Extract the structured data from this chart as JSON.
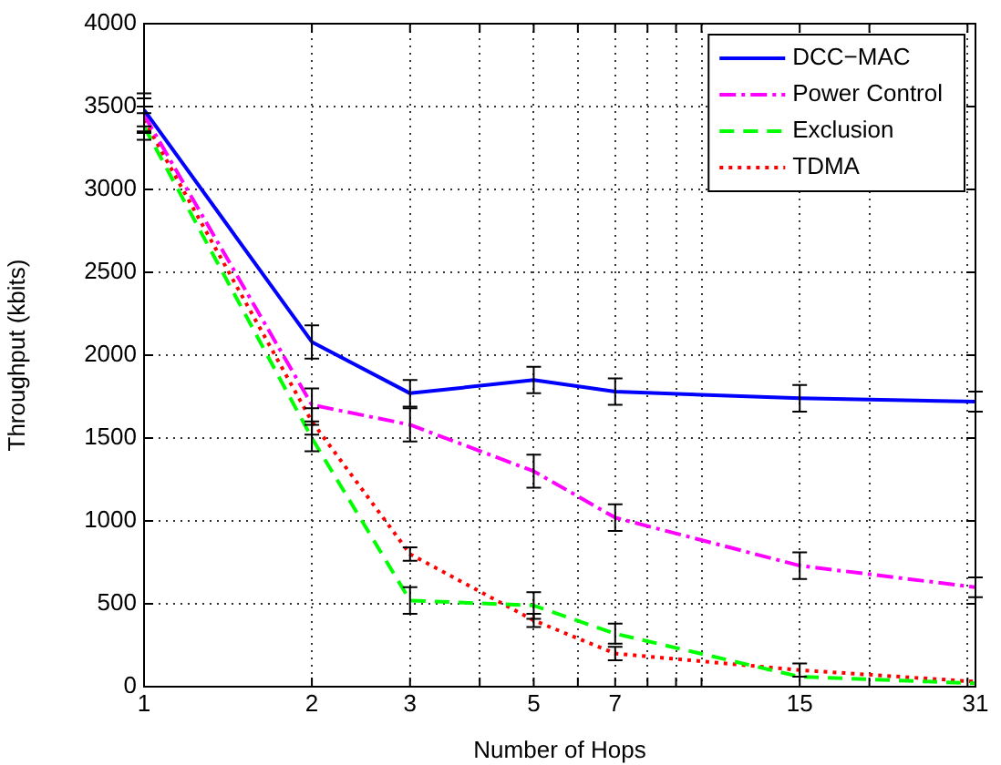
{
  "chart_data": {
    "type": "line",
    "xlabel": "Number of Hops",
    "ylabel": "Throughput (kbits)",
    "log": "x",
    "x": [
      1,
      2,
      3,
      5,
      7,
      15,
      31
    ],
    "xlim": [
      1,
      31
    ],
    "xticks": [
      1,
      2,
      3,
      {
        "value": 4,
        "label": null
      },
      5,
      {
        "value": 6,
        "label": null
      },
      7,
      {
        "value": 8,
        "label": null
      },
      {
        "value": 9,
        "label": null
      },
      {
        "value": 10,
        "label": null
      },
      15,
      {
        "value": 20,
        "label": null
      },
      {
        "value": 30,
        "label": null
      },
      31
    ],
    "ylim": [
      0,
      4000
    ],
    "yticks": [
      0,
      500,
      1000,
      1500,
      2000,
      2500,
      3000,
      3500,
      4000
    ],
    "grid": true,
    "legend": "top right",
    "series": [
      {
        "name": "DCC−MAC",
        "color": "#0000ff",
        "line_style": "solid",
        "values": [
          3480,
          2080,
          1770,
          1850,
          1780,
          1740,
          1720
        ],
        "errors": [
          100,
          100,
          80,
          80,
          80,
          80,
          60
        ]
      },
      {
        "name": "Power Control",
        "color": "#ff00ff",
        "line_style": "dashdot",
        "values": [
          3450,
          1700,
          1580,
          1300,
          1020,
          730,
          600
        ],
        "errors": [
          100,
          100,
          100,
          100,
          80,
          80,
          60
        ]
      },
      {
        "name": "Exclusion",
        "color": "#00ff00",
        "line_style": "dashed",
        "values": [
          3380,
          1500,
          520,
          490,
          320,
          60,
          20
        ],
        "errors": [
          80,
          80,
          80,
          80,
          60,
          null,
          null
        ]
      },
      {
        "name": "TDMA",
        "color": "#ff0000",
        "line_style": "dotted",
        "values": [
          3420,
          1600,
          800,
          400,
          200,
          100,
          30
        ],
        "errors": [
          80,
          80,
          40,
          40,
          40,
          40,
          null
        ]
      }
    ]
  }
}
